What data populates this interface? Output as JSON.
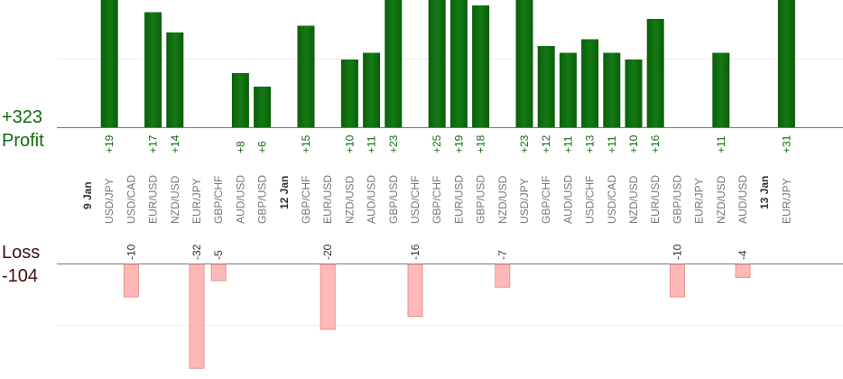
{
  "summary": {
    "profit_total": "+323",
    "profit_label": "Profit",
    "loss_label": "Loss",
    "loss_total": "-104"
  },
  "chart_data": {
    "type": "bar",
    "colors": {
      "profit": "#0d6b0d",
      "loss": "#ffb8b8",
      "loss_border": "#e89090",
      "day_label": "#333333",
      "pair_label": "#777777"
    },
    "slots": [
      {
        "day": "9 Jan"
      },
      {
        "pair": "USD/JPY",
        "profit": 19
      },
      {
        "pair": "USD/CAD",
        "loss": -10
      },
      {
        "pair": "EUR/USD",
        "profit": 17
      },
      {
        "pair": "NZD/USD",
        "profit": 14
      },
      {
        "pair": "EUR/JPY",
        "loss": -32
      },
      {
        "pair": "GBP/CHF",
        "loss": -5
      },
      {
        "pair": "AUD/USD",
        "profit": 8
      },
      {
        "pair": "GBP/USD",
        "profit": 6
      },
      {
        "day": "12 Jan"
      },
      {
        "pair": "GBP/CHF",
        "profit": 15
      },
      {
        "pair": "EUR/USD",
        "loss": -20
      },
      {
        "pair": "NZD/USD",
        "profit": 10
      },
      {
        "pair": "AUD/USD",
        "profit": 11
      },
      {
        "pair": "GBP/USD",
        "profit": 23
      },
      {
        "pair": "USD/CHF",
        "loss": -16
      },
      {
        "pair": "GBP/CHF",
        "profit": 25
      },
      {
        "pair": "EUR/USD",
        "profit": 19
      },
      {
        "pair": "GBP/USD",
        "profit": 18
      },
      {
        "pair": "NZD/USD",
        "loss": -7
      },
      {
        "pair": "USD/JPY",
        "profit": 23
      },
      {
        "pair": "GBP/CHF",
        "profit": 12
      },
      {
        "pair": "AUD/USD",
        "profit": 11
      },
      {
        "pair": "USD/CHF",
        "profit": 13
      },
      {
        "pair": "USD/CAD",
        "profit": 11
      },
      {
        "pair": "NZD/USD",
        "profit": 10
      },
      {
        "pair": "EUR/USD",
        "profit": 16
      },
      {
        "pair": "GBP/USD",
        "loss": -10
      },
      {
        "pair": "EUR/JPY"
      },
      {
        "pair": "NZD/USD",
        "profit": 11
      },
      {
        "pair": "AUD/USD",
        "loss": -4
      },
      {
        "day": "13 Jan"
      },
      {
        "pair": "EUR/JPY",
        "profit": 31
      }
    ]
  }
}
